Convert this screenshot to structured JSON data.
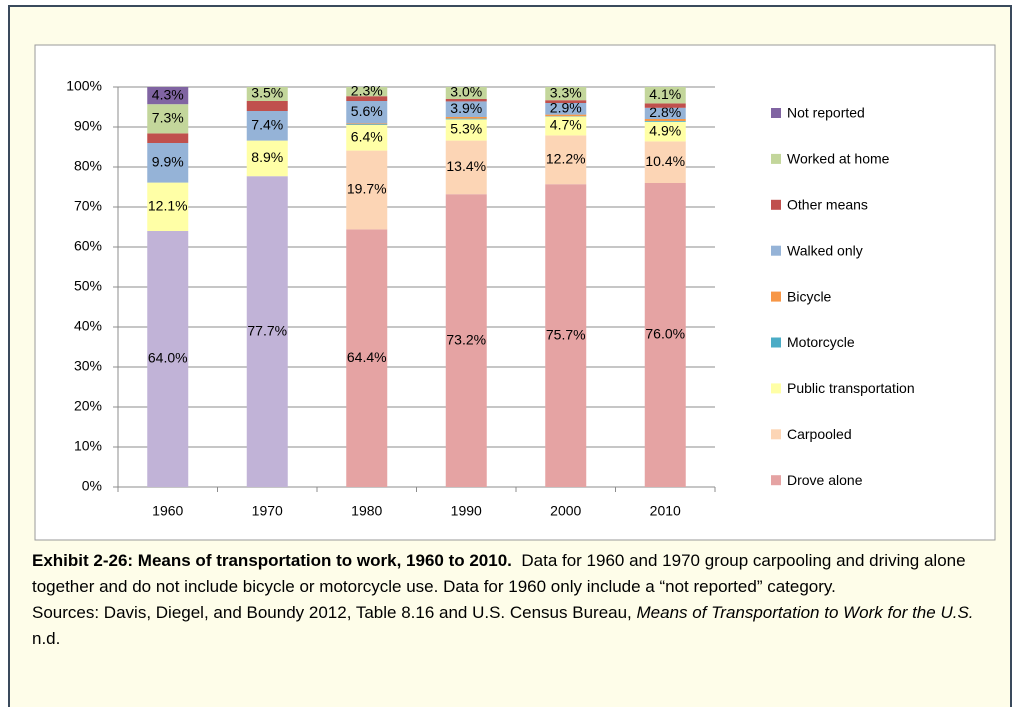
{
  "chart_data": {
    "type": "stacked_bar",
    "categories": [
      "1960",
      "1970",
      "1980",
      "1990",
      "2000",
      "2010"
    ],
    "ylim": [
      0,
      100
    ],
    "yticks": [
      {
        "value": 0,
        "label": "0%"
      },
      {
        "value": 10,
        "label": "10%"
      },
      {
        "value": 20,
        "label": "20%"
      },
      {
        "value": 30,
        "label": "30%"
      },
      {
        "value": 40,
        "label": "40%"
      },
      {
        "value": 50,
        "label": "50%"
      },
      {
        "value": 60,
        "label": "60%"
      },
      {
        "value": 70,
        "label": "70%"
      },
      {
        "value": 80,
        "label": "80%"
      },
      {
        "value": 90,
        "label": "90%"
      },
      {
        "value": 100,
        "label": "100%"
      }
    ],
    "grid": true,
    "legend": "right",
    "series": [
      {
        "name": "Drove alone",
        "color": "#e5a3a3",
        "point_colors": [
          "#c1b3d7",
          "#c1b3d7",
          "#e5a3a3",
          "#e5a3a3",
          "#e5a3a3",
          "#e5a3a3"
        ],
        "values": [
          64.0,
          77.7,
          64.4,
          73.2,
          75.7,
          76.0
        ],
        "value_labels": [
          "64.0%",
          "77.7%",
          "64.4%",
          "73.2%",
          "75.7%",
          "76.0%"
        ]
      },
      {
        "name": "Carpooled",
        "color": "#fcd5b5",
        "values": [
          null,
          null,
          19.7,
          13.4,
          12.2,
          10.4
        ],
        "value_labels": [
          null,
          null,
          "19.7%",
          "13.4%",
          "12.2%",
          "10.4%"
        ]
      },
      {
        "name": "Public transportation",
        "color": "#ffffa6",
        "values": [
          12.1,
          8.9,
          6.4,
          5.3,
          4.7,
          4.9
        ],
        "value_labels": [
          "12.1%",
          "8.9%",
          "6.4%",
          "5.3%",
          "4.7%",
          "4.9%"
        ]
      },
      {
        "name": "Motorcycle",
        "color": "#4bacc6",
        "values": [
          null,
          null,
          0.2,
          0.2,
          0.1,
          0.2
        ]
      },
      {
        "name": "Bicycle",
        "color": "#f79646",
        "values": [
          null,
          null,
          0.2,
          0.4,
          0.4,
          0.5
        ]
      },
      {
        "name": "Walked only",
        "color": "#95b3d7",
        "values": [
          9.9,
          7.4,
          5.6,
          3.9,
          2.9,
          2.8
        ],
        "value_labels": [
          "9.9%",
          "7.4%",
          "5.6%",
          "3.9%",
          "2.9%",
          "2.8%"
        ]
      },
      {
        "name": "Other means",
        "color": "#c0504d",
        "values": [
          2.4,
          2.5,
          1.2,
          0.6,
          0.7,
          1.1
        ]
      },
      {
        "name": "Worked at home",
        "color": "#c3d69b",
        "values": [
          7.3,
          3.5,
          2.3,
          3.0,
          3.3,
          4.1
        ],
        "value_labels": [
          "7.3%",
          "3.5%",
          "2.3%",
          "3.0%",
          "3.3%",
          "4.1%"
        ]
      },
      {
        "name": "Not reported",
        "color": "#8064a2",
        "values": [
          4.3,
          null,
          null,
          null,
          null,
          null
        ],
        "value_labels": [
          "4.3%",
          null,
          null,
          null,
          null,
          null
        ]
      }
    ]
  },
  "caption": {
    "title": "Exhibit 2-26: Means of transportation to work, 1960 to 2010.",
    "text": "Data for 1960 and 1970 group carpooling and driving alone together and do not include bicycle or motorcycle use. Data for 1960 only include a “not reported” category.",
    "sources": "Sources: Davis, Diegel, and Boundy 2012, Table 8.16 and U.S. Census Bureau,",
    "sources_title": "Means of Transportation to Work for the U.S.",
    "sources_end": "n.d."
  }
}
